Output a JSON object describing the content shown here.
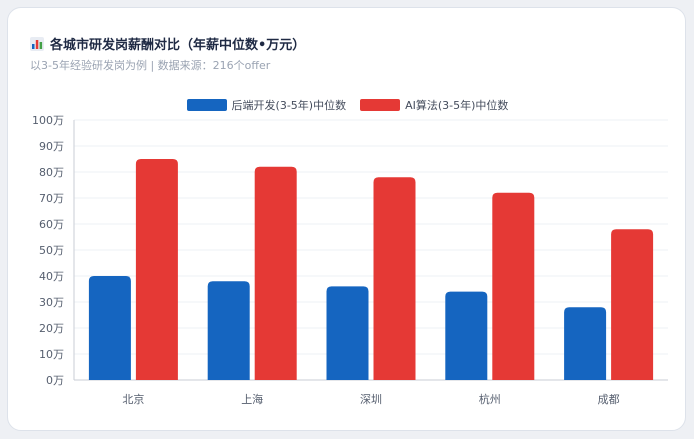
{
  "header": {
    "title": "各城市研发岗薪酬对比（年薪中位数•万元）",
    "subtitle": "以3-5年经验研发岗为例 | 数据来源：216个offer",
    "icon": "bar-chart-icon"
  },
  "colors": {
    "backend": "#1565c0",
    "ai": "#e53935",
    "grid": "#edf0f4",
    "axis": "#c9ced6"
  },
  "chart_data": {
    "type": "bar",
    "categories": [
      "北京",
      "上海",
      "深圳",
      "杭州",
      "成都"
    ],
    "series": [
      {
        "name": "后端开发(3-5年)中位数",
        "values": [
          40,
          38,
          36,
          34,
          28
        ]
      },
      {
        "name": "AI算法(3-5年)中位数",
        "values": [
          85,
          82,
          78,
          72,
          58
        ]
      }
    ],
    "ylim": [
      0,
      100
    ],
    "yticks": [
      0,
      10,
      20,
      30,
      40,
      50,
      60,
      70,
      80,
      90,
      100
    ],
    "ytick_suffix": "万",
    "grid": true,
    "legend": "top-center"
  }
}
